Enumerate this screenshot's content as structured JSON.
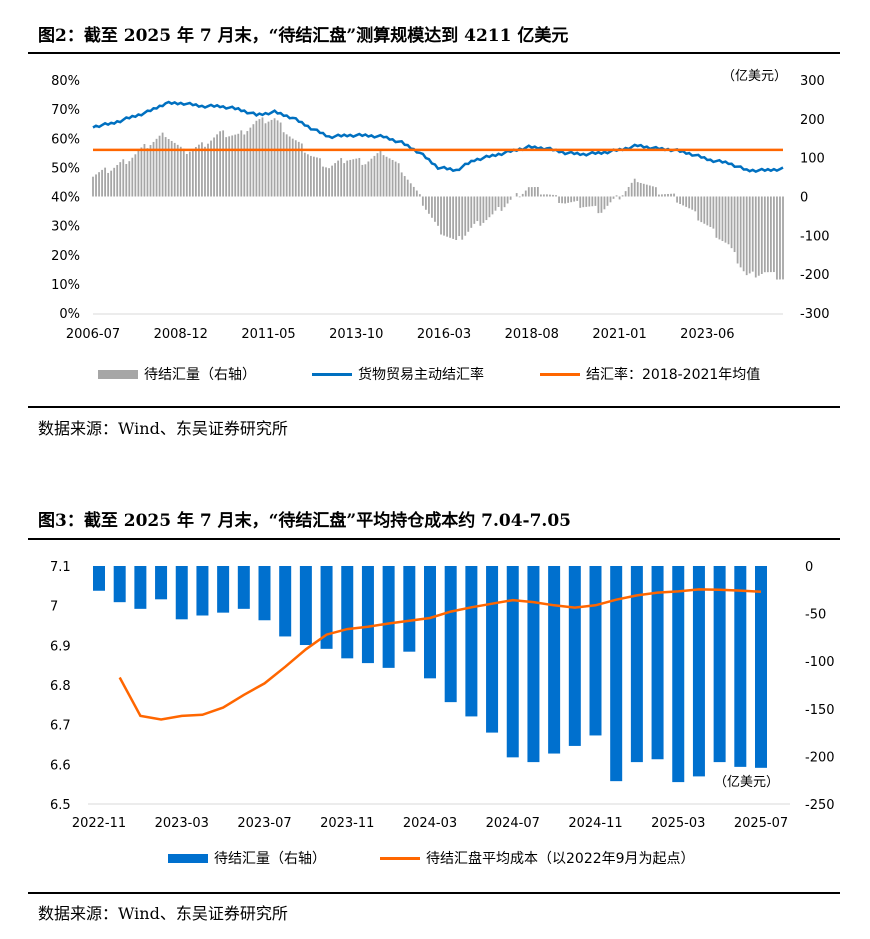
{
  "figure2": {
    "title": "图2：截至 2025 年 7 月末，“待结汇盘”测算规模达到 4211 亿美元",
    "source": "数据来源：Wind、东吴证券研究所",
    "legend": [
      "待结汇量（右轴）",
      "货物贸易主动结汇率",
      "结汇率：2018-2021年均值"
    ]
  },
  "figure3": {
    "title": "图3：截至 2025 年 7 月末，“待结汇盘”平均持仓成本约 7.04-7.05",
    "source": "数据来源：Wind、东吴证券研究所",
    "legend": [
      "待结汇量（右轴）",
      "待结汇盘平均成本（以2022年9月为起点）"
    ]
  },
  "chart_data": [
    {
      "type": "bar+line",
      "right_unit": "（亿美元）",
      "x_ticks": [
        "2006-07",
        "2008-12",
        "2011-05",
        "2013-10",
        "2016-03",
        "2018-08",
        "2021-01",
        "2023-06"
      ],
      "left_ticks": [
        "0%",
        "10%",
        "20%",
        "30%",
        "40%",
        "50%",
        "60%",
        "70%",
        "80%"
      ],
      "right_ticks": [
        "-300",
        "-200",
        "-100",
        "0",
        "100",
        "200",
        "300"
      ],
      "ylim_left": [
        0,
        80
      ],
      "ylim_right": [
        -300,
        300
      ],
      "colors": {
        "bars": "#A6A6A6",
        "rate": "#0070C0",
        "mean": "#FF6600"
      },
      "x": [
        "2006-07",
        "2007-01",
        "2007-07",
        "2008-01",
        "2008-07",
        "2009-01",
        "2009-07",
        "2010-01",
        "2010-07",
        "2011-01",
        "2011-07",
        "2012-01",
        "2012-07",
        "2013-01",
        "2013-07",
        "2014-01",
        "2014-07",
        "2015-01",
        "2015-07",
        "2016-01",
        "2016-07",
        "2017-01",
        "2017-07",
        "2018-01",
        "2018-07",
        "2019-01",
        "2019-07",
        "2020-01",
        "2020-07",
        "2021-01",
        "2021-07",
        "2022-01",
        "2022-07",
        "2023-01",
        "2023-07",
        "2024-01",
        "2024-07",
        "2025-01",
        "2025-07"
      ],
      "series": [
        {
          "name": "待结汇量（右轴）",
          "axis": "right",
          "kind": "bar",
          "values": [
            54,
            71,
            97,
            132,
            162,
            114,
            132,
            162,
            157,
            192,
            200,
            149,
            106,
            76,
            97,
            89,
            114,
            71,
            -3,
            -83,
            -118,
            -75,
            -49,
            -10,
            24,
            7,
            -15,
            -23,
            -36,
            0,
            46,
            15,
            0,
            -40,
            -83,
            -126,
            -204,
            -195,
            -212
          ]
        },
        {
          "name": "货物贸易主动结汇率",
          "axis": "left",
          "kind": "line",
          "values": [
            64,
            65,
            67,
            69,
            72,
            72,
            71,
            71,
            70,
            68,
            69,
            67,
            63.5,
            60.5,
            61,
            61,
            60.5,
            58.5,
            55,
            50,
            49,
            52.5,
            54,
            55.5,
            57,
            56.5,
            55,
            54.5,
            55,
            56,
            57.5,
            56.5,
            56,
            54.5,
            52.5,
            51.5,
            49,
            49,
            49.5
          ]
        },
        {
          "name": "结汇率：2018-2021年均值",
          "axis": "left",
          "kind": "hline",
          "value": 56
        }
      ]
    },
    {
      "type": "bar+line",
      "right_unit": "（亿美元）",
      "x_ticks": [
        "2022-11",
        "2023-03",
        "2023-07",
        "2023-11",
        "2024-03",
        "2024-07",
        "2024-11",
        "2025-03",
        "2025-07"
      ],
      "left_ticks": [
        "6.5",
        "6.6",
        "6.7",
        "6.8",
        "6.9",
        "7",
        "7.1"
      ],
      "right_ticks": [
        "-250",
        "-200",
        "-150",
        "-100",
        "-50",
        "0"
      ],
      "ylim_left": [
        6.5,
        7.1
      ],
      "ylim_right": [
        -250,
        0
      ],
      "colors": {
        "bars": "#0070CE",
        "cost": "#FF6600"
      },
      "x": [
        "2022-11",
        "2022-12",
        "2023-01",
        "2023-02",
        "2023-03",
        "2023-04",
        "2023-05",
        "2023-06",
        "2023-07",
        "2023-08",
        "2023-09",
        "2023-10",
        "2023-11",
        "2023-12",
        "2024-01",
        "2024-02",
        "2024-03",
        "2024-04",
        "2024-05",
        "2024-06",
        "2024-07",
        "2024-08",
        "2024-09",
        "2024-10",
        "2024-11",
        "2024-12",
        "2025-01",
        "2025-02",
        "2025-03",
        "2025-04",
        "2025-05",
        "2025-06",
        "2025-07"
      ],
      "series": [
        {
          "name": "待结汇量（右轴）",
          "axis": "right",
          "kind": "bar",
          "values": [
            -26,
            -38,
            -45,
            -35,
            -56,
            -52,
            -49,
            -45,
            -57,
            -74,
            -83,
            -87,
            -97,
            -102,
            -107,
            -90,
            -118,
            -143,
            -158,
            -175,
            -201,
            -206,
            -197,
            -189,
            -178,
            -226,
            -206,
            -203,
            -227,
            -221,
            -206,
            -211,
            -212
          ]
        },
        {
          "name": "待结汇盘平均成本（以2022年9月为起点）",
          "axis": "left",
          "kind": "line",
          "values": [
            null,
            6.819,
            6.722,
            6.713,
            6.722,
            6.725,
            6.743,
            6.775,
            6.804,
            6.846,
            6.89,
            6.927,
            6.941,
            6.947,
            6.955,
            6.962,
            6.969,
            6.985,
            6.996,
            7.005,
            7.014,
            7.009,
            7.001,
            6.995,
            7.001,
            7.015,
            7.026,
            7.033,
            7.036,
            7.041,
            7.04,
            7.038,
            7.035
          ]
        }
      ]
    }
  ]
}
